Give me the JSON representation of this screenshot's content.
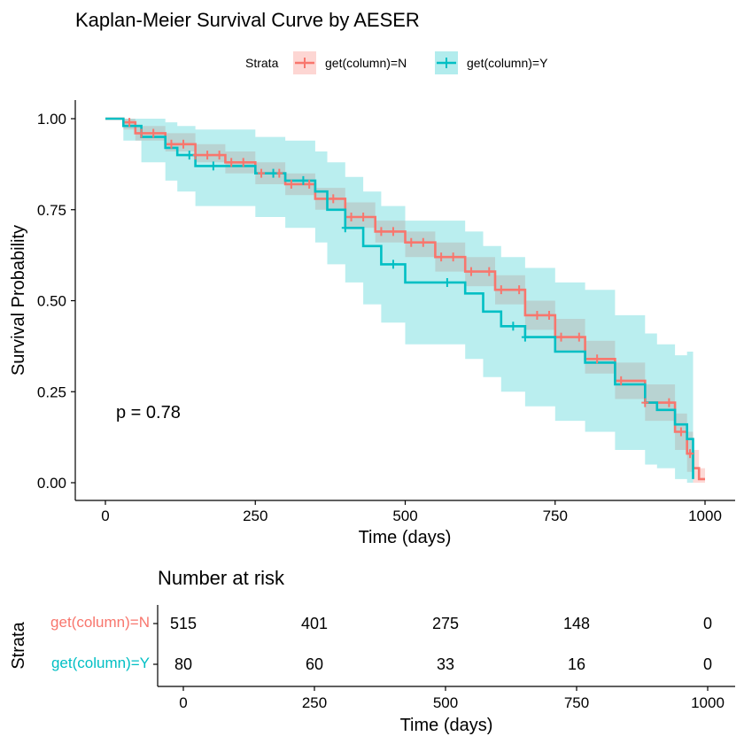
{
  "chart_data": {
    "type": "line",
    "title": "Kaplan-Meier Survival Curve by AESER",
    "xlabel": "Time (days)",
    "ylabel": "Survival Probability",
    "xlim": [
      0,
      1000
    ],
    "ylim": [
      0,
      1
    ],
    "x_ticks": [
      "0",
      "250",
      "500",
      "750",
      "1000"
    ],
    "y_ticks": [
      "0.00",
      "0.25",
      "0.50",
      "0.75",
      "1.00"
    ],
    "legend": {
      "title": "Strata",
      "position": "top"
    },
    "p_value_label": "p = 0.78",
    "colors": {
      "N": "#F8766D",
      "Y": "#00BFC4",
      "overlap": "#BEBEBE"
    },
    "series": [
      {
        "name": "get(column)=N",
        "color": "#F8766D",
        "time": [
          0,
          30,
          50,
          100,
          150,
          200,
          250,
          300,
          350,
          400,
          450,
          500,
          550,
          600,
          650,
          700,
          750,
          800,
          850,
          900,
          950,
          970,
          980,
          990,
          1000
        ],
        "survival": [
          1.0,
          0.99,
          0.96,
          0.93,
          0.9,
          0.88,
          0.85,
          0.82,
          0.78,
          0.73,
          0.69,
          0.66,
          0.62,
          0.58,
          0.53,
          0.46,
          0.4,
          0.34,
          0.28,
          0.22,
          0.14,
          0.08,
          0.04,
          0.01,
          0.01
        ],
        "lower": [
          1.0,
          0.97,
          0.94,
          0.91,
          0.88,
          0.85,
          0.82,
          0.79,
          0.75,
          0.7,
          0.66,
          0.62,
          0.58,
          0.54,
          0.49,
          0.42,
          0.36,
          0.3,
          0.23,
          0.17,
          0.09,
          0.03,
          0.0,
          0.0,
          0.0
        ],
        "upper": [
          1.0,
          1.0,
          0.98,
          0.96,
          0.93,
          0.91,
          0.88,
          0.85,
          0.81,
          0.77,
          0.72,
          0.69,
          0.66,
          0.62,
          0.57,
          0.5,
          0.45,
          0.39,
          0.33,
          0.27,
          0.19,
          0.14,
          0.09,
          0.04,
          0.04
        ],
        "censor_times": [
          40,
          60,
          80,
          110,
          130,
          150,
          170,
          190,
          210,
          230,
          260,
          290,
          310,
          340,
          380,
          410,
          430,
          460,
          480,
          510,
          530,
          560,
          580,
          610,
          640,
          660,
          690,
          720,
          740,
          760,
          790,
          820,
          860,
          900,
          940,
          960,
          975
        ]
      },
      {
        "name": "get(column)=Y",
        "color": "#00BFC4",
        "time": [
          0,
          30,
          60,
          100,
          120,
          150,
          200,
          250,
          300,
          350,
          370,
          400,
          430,
          460,
          500,
          550,
          600,
          630,
          660,
          700,
          750,
          800,
          850,
          900,
          920,
          950,
          970,
          980
        ],
        "survival": [
          1.0,
          0.98,
          0.95,
          0.92,
          0.9,
          0.87,
          0.87,
          0.85,
          0.83,
          0.8,
          0.75,
          0.7,
          0.65,
          0.6,
          0.55,
          0.55,
          0.52,
          0.47,
          0.43,
          0.4,
          0.36,
          0.33,
          0.27,
          0.22,
          0.2,
          0.16,
          0.12,
          0.01
        ],
        "lower": [
          1.0,
          0.94,
          0.88,
          0.83,
          0.8,
          0.76,
          0.76,
          0.73,
          0.7,
          0.66,
          0.6,
          0.55,
          0.49,
          0.44,
          0.38,
          0.38,
          0.34,
          0.29,
          0.25,
          0.21,
          0.17,
          0.14,
          0.09,
          0.05,
          0.04,
          0.01,
          0.0,
          0.0
        ],
        "upper": [
          1.0,
          1.0,
          1.0,
          0.99,
          0.98,
          0.97,
          0.97,
          0.95,
          0.94,
          0.91,
          0.88,
          0.84,
          0.8,
          0.76,
          0.72,
          0.72,
          0.69,
          0.65,
          0.62,
          0.59,
          0.55,
          0.53,
          0.46,
          0.41,
          0.38,
          0.35,
          0.36,
          0.36
        ],
        "censor_times": [
          140,
          180,
          280,
          330,
          400,
          480,
          570,
          680,
          700
        ]
      }
    ]
  },
  "risk_table": {
    "title": "Number at risk",
    "xlabel": "Time (days)",
    "ylabel": "Strata",
    "x_ticks": [
      "0",
      "250",
      "500",
      "750",
      "1000"
    ],
    "rows": [
      {
        "label": "get(column)=N",
        "color": "#F8766D",
        "values": [
          "515",
          "401",
          "275",
          "148",
          "0"
        ]
      },
      {
        "label": "get(column)=Y",
        "color": "#00BFC4",
        "values": [
          "80",
          "60",
          "33",
          "16",
          "0"
        ]
      }
    ]
  }
}
